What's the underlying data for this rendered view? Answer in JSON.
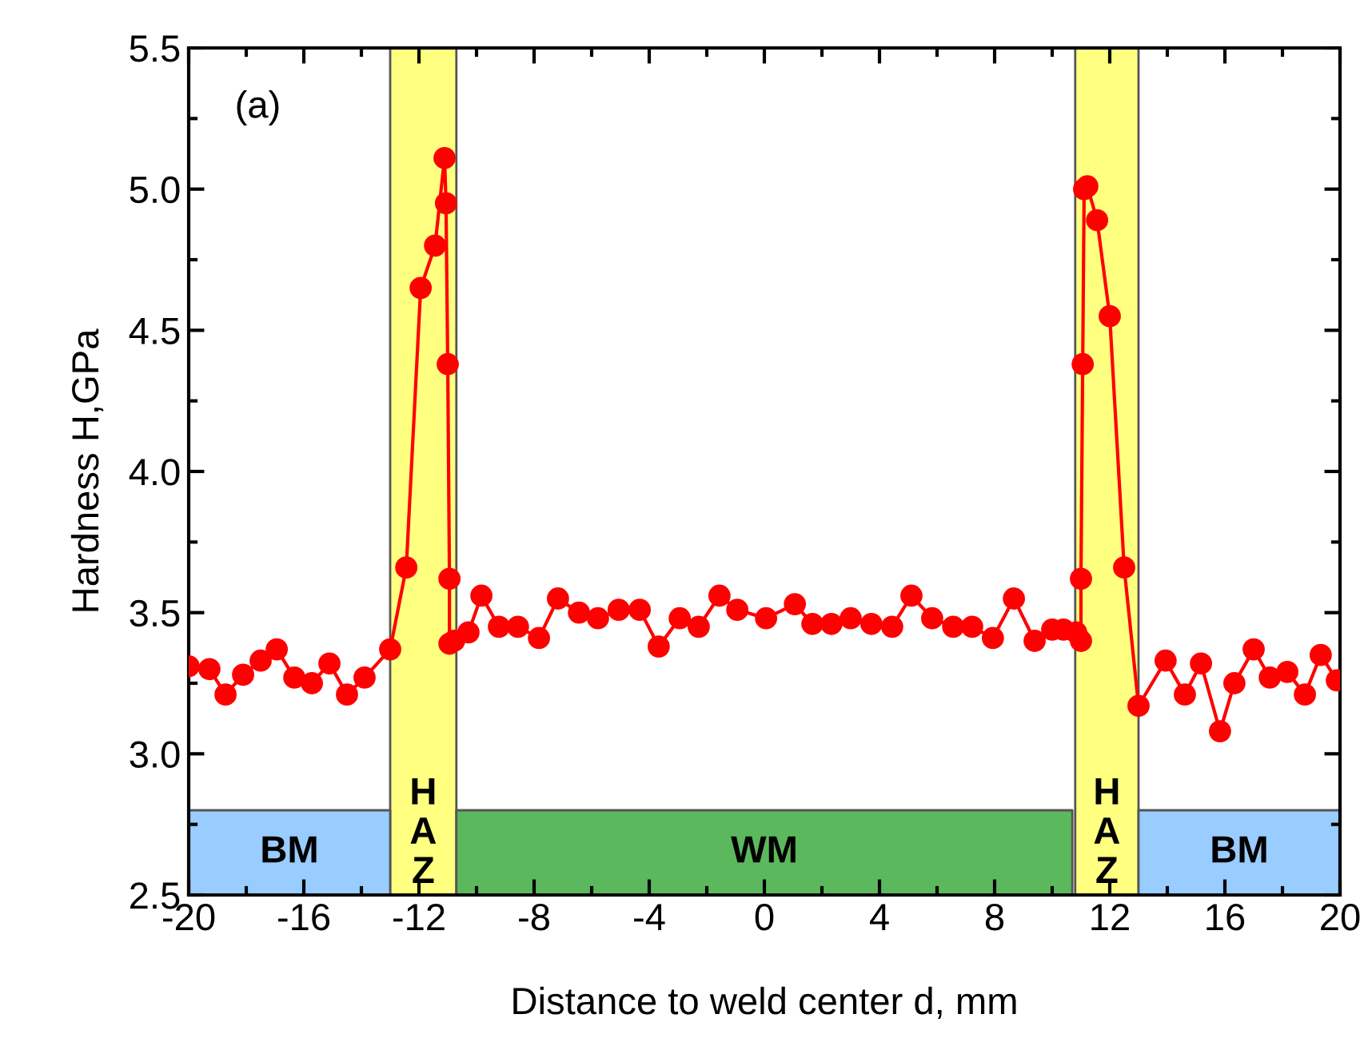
{
  "chart_data": {
    "type": "line",
    "xlabel": "Distance to weld center d, mm",
    "ylabel": "Hardness H,GPa",
    "annotations": [
      "(a)"
    ],
    "x": [
      -20.0,
      -19.28,
      -18.72,
      -18.11,
      -17.5,
      -16.94,
      -16.33,
      -15.72,
      -15.11,
      -14.5,
      -13.89,
      -13.0,
      -12.44,
      -11.94,
      -11.44,
      -11.11,
      -11.06,
      -11.0,
      -10.94,
      -10.94,
      -10.78,
      -10.28,
      -9.83,
      -9.22,
      -8.56,
      -7.83,
      -7.17,
      -6.44,
      -5.78,
      -5.06,
      -4.33,
      -3.67,
      -2.94,
      -2.28,
      -1.56,
      -0.94,
      0.06,
      1.06,
      1.67,
      2.33,
      3.0,
      3.72,
      4.44,
      5.11,
      5.83,
      6.56,
      7.22,
      7.94,
      8.67,
      9.39,
      10.0,
      10.39,
      10.83,
      11.0,
      11.0,
      11.06,
      11.11,
      11.22,
      11.56,
      12.0,
      12.5,
      13.0,
      13.94,
      14.61,
      15.17,
      15.83,
      16.33,
      17.0,
      17.56,
      18.17,
      18.78,
      19.33,
      19.89
    ],
    "series": [
      {
        "color": "#ff0000",
        "values": [
          3.31,
          3.3,
          3.21,
          3.28,
          3.33,
          3.37,
          3.27,
          3.25,
          3.32,
          3.21,
          3.27,
          3.37,
          3.66,
          4.65,
          4.8,
          5.11,
          4.95,
          4.38,
          3.62,
          3.39,
          3.4,
          3.43,
          3.56,
          3.45,
          3.45,
          3.41,
          3.55,
          3.5,
          3.48,
          3.51,
          3.51,
          3.38,
          3.48,
          3.45,
          3.56,
          3.51,
          3.48,
          3.53,
          3.46,
          3.46,
          3.48,
          3.46,
          3.45,
          3.56,
          3.48,
          3.45,
          3.45,
          3.41,
          3.55,
          3.4,
          3.44,
          3.44,
          3.43,
          3.4,
          3.62,
          4.38,
          5.0,
          5.01,
          4.89,
          4.55,
          3.66,
          3.17,
          3.33,
          3.21,
          3.32,
          3.08,
          3.25,
          3.37,
          3.27,
          3.29,
          3.21,
          3.35,
          3.26
        ]
      }
    ],
    "marker": "circle",
    "line_style": "solid",
    "grid": false,
    "legend": false,
    "xlim": [
      -20,
      20
    ],
    "xticks": [
      -20,
      -16,
      -12,
      -8,
      -4,
      0,
      4,
      8,
      12,
      16,
      20
    ],
    "ylim": [
      2.5,
      5.5
    ],
    "yticks": [
      2.5,
      {
        "value": 3.0,
        "label": "3.0"
      },
      3.5,
      {
        "value": 4.0,
        "label": "4.0"
      },
      4.5,
      {
        "value": 5.0,
        "label": "5.0"
      },
      5.5
    ],
    "bands": [
      {
        "axis": "x",
        "from": -13.0,
        "to": -10.7,
        "label": "HAZ",
        "color": "#ffff80"
      },
      {
        "axis": "x",
        "from": 10.8,
        "to": 13.0,
        "label": "HAZ",
        "color": "#ffff80"
      },
      {
        "axis": "x",
        "from": -20,
        "to": -13.0,
        "label": "BM",
        "color": "#99ccff"
      },
      {
        "axis": "x",
        "from": -10.7,
        "to": 10.7,
        "label": "WM",
        "color": "#5cb85c"
      },
      {
        "axis": "x",
        "from": 13.0,
        "to": 20,
        "label": "BM",
        "color": "#99ccff"
      }
    ]
  }
}
